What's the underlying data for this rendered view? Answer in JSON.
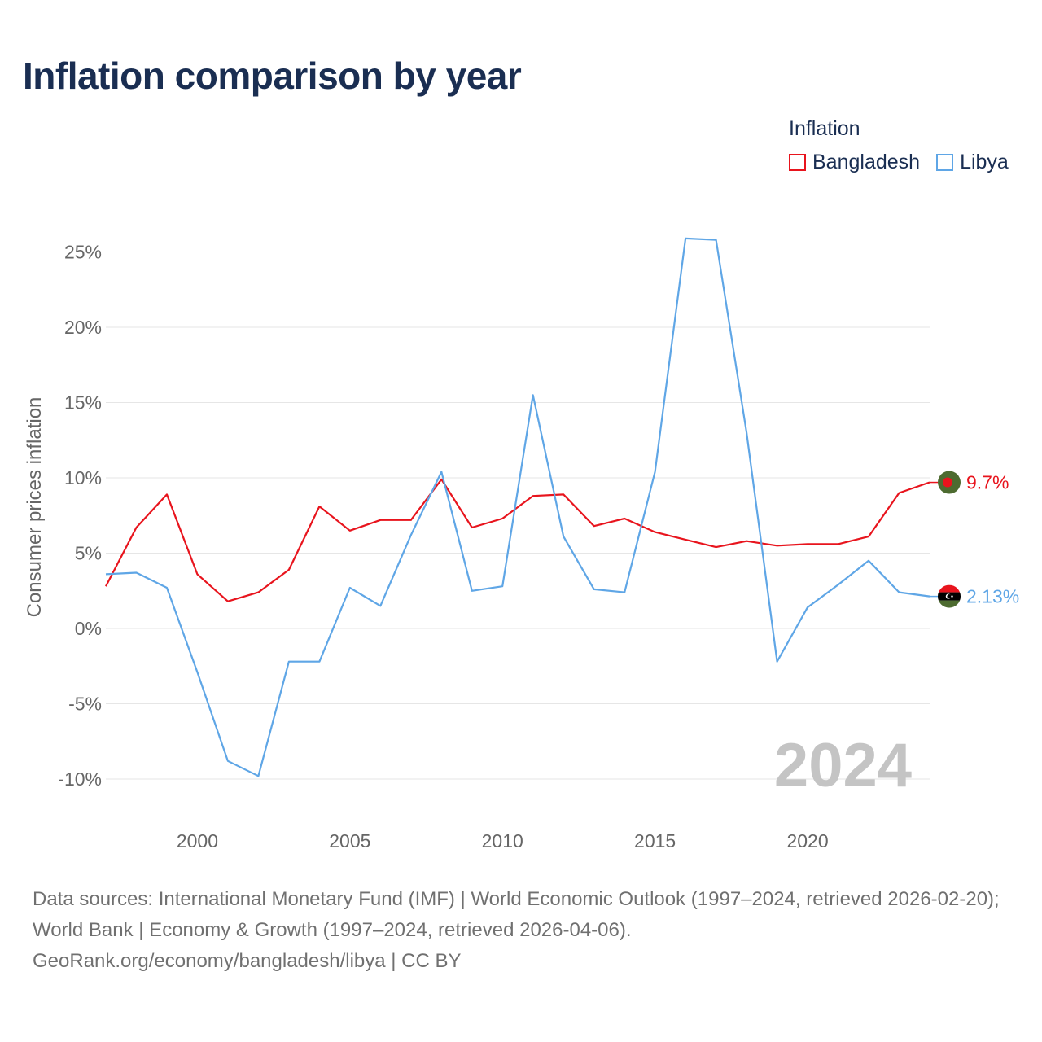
{
  "title": "Inflation comparison by year",
  "legend": {
    "title": "Inflation",
    "items": [
      {
        "name": "Bangladesh",
        "color": "#e8141d"
      },
      {
        "name": "Libya",
        "color": "#5fa6e6"
      }
    ]
  },
  "chart_data": {
    "type": "line",
    "title": "Inflation comparison by year",
    "ylabel": "Consumer prices inflation",
    "xlabel": "",
    "ylim": [
      -10,
      25
    ],
    "xlim": [
      1997,
      2024
    ],
    "y_ticks": [
      25,
      20,
      15,
      10,
      5,
      0,
      -5,
      -10
    ],
    "y_tick_labels": [
      "25%",
      "20%",
      "15%",
      "10%",
      "5%",
      "0%",
      "-5%",
      "-10%"
    ],
    "x_ticks": [
      2000,
      2005,
      2010,
      2015,
      2020
    ],
    "x_tick_labels": [
      "2000",
      "2005",
      "2010",
      "2015",
      "2020"
    ],
    "grid": true,
    "year_watermark": "2024",
    "x": [
      1997,
      1998,
      1999,
      2000,
      2001,
      2002,
      2003,
      2004,
      2005,
      2006,
      2007,
      2008,
      2009,
      2010,
      2011,
      2012,
      2013,
      2014,
      2015,
      2016,
      2017,
      2018,
      2019,
      2020,
      2021,
      2022,
      2023,
      2024
    ],
    "series": [
      {
        "name": "Bangladesh",
        "color": "#e8141d",
        "values": [
          2.8,
          6.7,
          8.9,
          3.6,
          1.8,
          2.4,
          3.9,
          8.1,
          6.5,
          7.2,
          7.2,
          9.9,
          6.7,
          7.3,
          8.8,
          8.9,
          6.8,
          7.3,
          6.4,
          5.9,
          5.4,
          5.8,
          5.5,
          5.6,
          5.6,
          6.1,
          9.0,
          9.7
        ],
        "end_label": "9.7%",
        "flag": "bangladesh-flag"
      },
      {
        "name": "Libya",
        "color": "#5fa6e6",
        "values": [
          3.6,
          3.7,
          2.7,
          -2.9,
          -8.8,
          -9.8,
          -2.2,
          -2.2,
          2.7,
          1.5,
          6.2,
          10.4,
          2.5,
          2.8,
          15.5,
          6.1,
          2.6,
          2.4,
          10.4,
          25.9,
          25.8,
          13.0,
          -2.2,
          1.4,
          2.9,
          4.5,
          2.4,
          2.13
        ],
        "end_label": "2.13%",
        "flag": "libya-flag"
      }
    ]
  },
  "source": {
    "line1": "Data sources: International Monetary Fund (IMF) | World Economic Outlook (1997–2024, retrieved 2026-02-20); World Bank | Economy & Growth (1997–2024, retrieved 2026-04-06).",
    "line2": "GeoRank.org/economy/bangladesh/libya | CC BY"
  }
}
